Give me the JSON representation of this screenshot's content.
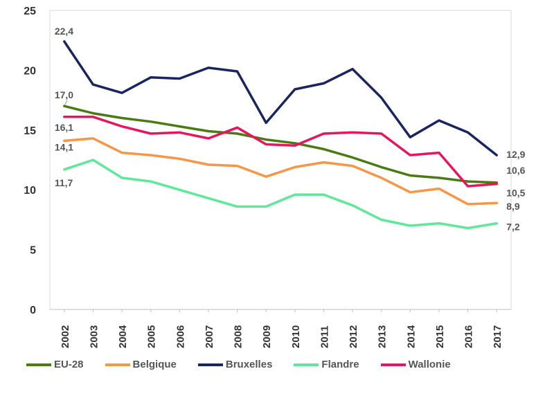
{
  "chart_data": {
    "type": "line",
    "title": "",
    "xlabel": "",
    "ylabel": "",
    "ylim": [
      0,
      25
    ],
    "yticks": [
      "0",
      "5",
      "10",
      "15",
      "20",
      "25"
    ],
    "categories": [
      "2002",
      "2003",
      "2004",
      "2005",
      "2006",
      "2007",
      "2008",
      "2009",
      "2010",
      "2011",
      "2012",
      "2013",
      "2014",
      "2015",
      "2016",
      "2017"
    ],
    "grid": false,
    "legend_position": "bottom",
    "series": [
      {
        "name": "EU-28",
        "color": "#4a7a12",
        "values": [
          17.0,
          16.4,
          16.0,
          15.7,
          15.3,
          14.9,
          14.7,
          14.2,
          13.9,
          13.4,
          12.7,
          11.9,
          11.2,
          11.0,
          10.7,
          10.6
        ],
        "labels": [
          {
            "index": 0,
            "text": "17,0"
          },
          {
            "index": 15,
            "text": "10,6"
          }
        ]
      },
      {
        "name": "Belgique",
        "color": "#f79646",
        "values": [
          14.1,
          14.3,
          13.1,
          12.9,
          12.6,
          12.1,
          12.0,
          11.1,
          11.9,
          12.3,
          12.0,
          11.0,
          9.8,
          10.1,
          8.8,
          8.9
        ],
        "labels": [
          {
            "index": 0,
            "text": "14,1"
          },
          {
            "index": 15,
            "text": "8,9"
          }
        ]
      },
      {
        "name": "Bruxelles",
        "color": "#1a2460",
        "values": [
          22.4,
          18.8,
          18.1,
          19.4,
          19.3,
          20.2,
          19.9,
          15.6,
          18.4,
          18.9,
          20.1,
          17.7,
          14.4,
          15.8,
          14.8,
          12.9
        ],
        "labels": [
          {
            "index": 0,
            "text": "22,4"
          },
          {
            "index": 15,
            "text": "12,9"
          }
        ]
      },
      {
        "name": "Flandre",
        "color": "#5fe89a",
        "values": [
          11.7,
          12.5,
          11.0,
          10.7,
          10.0,
          9.3,
          8.6,
          8.6,
          9.6,
          9.6,
          8.7,
          7.5,
          7.0,
          7.2,
          6.8,
          7.2
        ],
        "labels": [
          {
            "index": 0,
            "text": "11,7"
          },
          {
            "index": 15,
            "text": "7,2"
          }
        ]
      },
      {
        "name": "Wallonie",
        "color": "#e8155e",
        "values": [
          16.1,
          16.1,
          15.3,
          14.7,
          14.8,
          14.3,
          15.2,
          13.8,
          13.7,
          14.7,
          14.8,
          14.7,
          12.9,
          13.1,
          10.3,
          10.5
        ],
        "labels": [
          {
            "index": 0,
            "text": "16,1"
          },
          {
            "index": 15,
            "text": "10,5"
          }
        ]
      }
    ]
  }
}
